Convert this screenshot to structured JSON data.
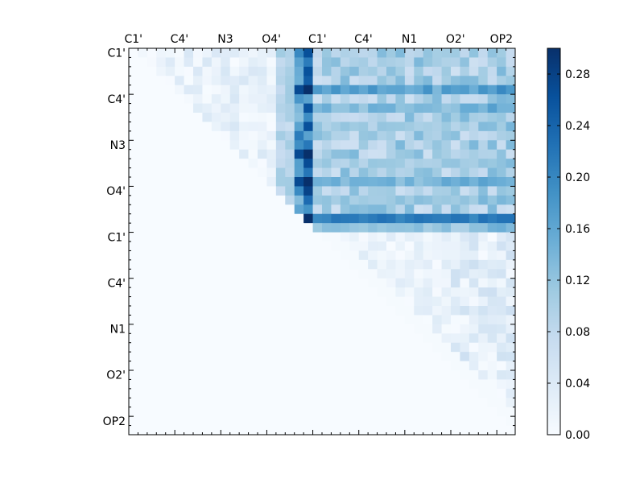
{
  "chart_data": {
    "type": "heatmap",
    "title": "",
    "xlabel": "",
    "ylabel": "",
    "grid": false,
    "n_rows": 42,
    "n_cols": 42,
    "x_ticklabels": [
      "C1'",
      "C4'",
      "N3",
      "O4'",
      "C1'",
      "C4'",
      "N1",
      "O2'",
      "OP2"
    ],
    "y_ticklabels": [
      "C1'",
      "C4'",
      "N3",
      "O4'",
      "C1'",
      "C4'",
      "N1",
      "O2'",
      "OP2"
    ],
    "colorbar": {
      "min": 0.0,
      "max": 0.3,
      "ticks": [
        "0.00",
        "0.04",
        "0.08",
        "0.12",
        "0.16",
        "0.20",
        "0.24",
        "0.28"
      ],
      "colormap": "Blues",
      "color_low": "#f7fbff",
      "color_high": "#08306b"
    },
    "structure": {
      "mask": "upper-triangle",
      "hot_columns": [
        {
          "col": 18,
          "value": 0.22
        },
        {
          "col": 19,
          "value": 0.28
        }
      ],
      "hot_rows": [
        {
          "row": 4,
          "value": 0.17
        },
        {
          "row": 6,
          "value": 0.14
        },
        {
          "row": 14,
          "value": 0.15
        },
        {
          "row": 18,
          "value": 0.19
        },
        {
          "row": 19,
          "value": 0.12
        },
        {
          "row": 16,
          "value": 0.12
        },
        {
          "row": 8,
          "value": 0.11
        },
        {
          "row": 12,
          "value": 0.11
        }
      ],
      "block_upper_right": {
        "row_start": 0,
        "row_end": 19,
        "col_start": 20,
        "col_end": 41,
        "value": 0.11
      },
      "strong_row": {
        "row": 18,
        "col_start": 20,
        "col_end": 41,
        "value": 0.21
      },
      "block_lower_right": {
        "row_start": 20,
        "row_end": 41,
        "col_start": 20,
        "col_end": 41,
        "value": 0.03
      },
      "block_upper_left": {
        "row_start": 0,
        "row_end": 19,
        "col_start": 0,
        "col_end": 19,
        "value": 0.03
      }
    }
  }
}
